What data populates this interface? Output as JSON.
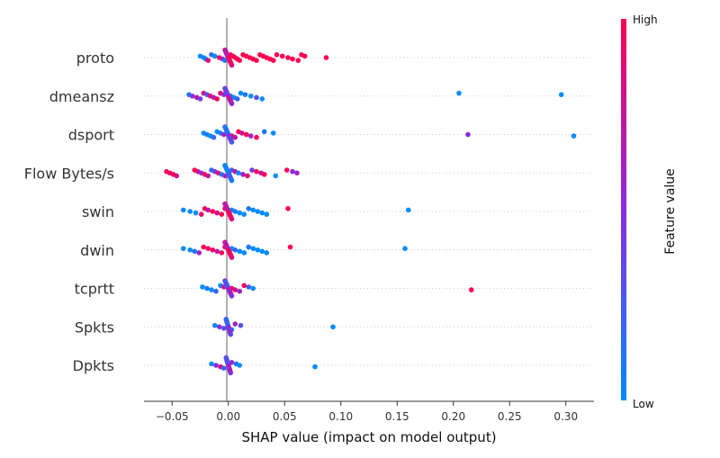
{
  "chart_data": {
    "type": "scatter",
    "subtype": "shap-beeswarm",
    "title": "",
    "xlabel": "SHAP value (impact on model output)",
    "xlim": [
      -0.075,
      0.325
    ],
    "xticks": [
      -0.05,
      0.0,
      0.05,
      0.1,
      0.15,
      0.2,
      0.25,
      0.3
    ],
    "xtick_labels": [
      "−0.05",
      "0.00",
      "0.05",
      "0.10",
      "0.15",
      "0.20",
      "0.25",
      "0.30"
    ],
    "features": [
      "proto",
      "dmeansz",
      "dsport",
      "Flow Bytes/s",
      "swin",
      "dwin",
      "tcprtt",
      "Spkts",
      "Dpkts"
    ],
    "colorbar": {
      "title": "Feature value",
      "high_label": "High",
      "low_label": "Low",
      "low_color": "#008bfb",
      "mid_color": "#8a2be2",
      "high_color": "#ff0052"
    },
    "grid": false,
    "points": [
      {
        "feature": "proto",
        "x": -0.025,
        "v": 0.0
      },
      {
        "feature": "proto",
        "x": -0.022,
        "v": 0.0
      },
      {
        "feature": "proto",
        "x": -0.02,
        "v": 0.1
      },
      {
        "feature": "proto",
        "x": -0.018,
        "v": 0.9
      },
      {
        "feature": "proto",
        "x": -0.015,
        "v": 0.2
      },
      {
        "feature": "proto",
        "x": -0.012,
        "v": 0.0
      },
      {
        "feature": "proto",
        "x": -0.008,
        "v": 1.0
      },
      {
        "feature": "proto",
        "x": -0.005,
        "v": 0.5
      },
      {
        "feature": "proto",
        "x": -0.003,
        "v": 0.1
      },
      {
        "feature": "proto",
        "x": 0.002,
        "v": 1.0
      },
      {
        "feature": "proto",
        "x": 0.004,
        "v": 1.0
      },
      {
        "feature": "proto",
        "x": 0.006,
        "v": 1.0
      },
      {
        "feature": "proto",
        "x": 0.008,
        "v": 1.0
      },
      {
        "feature": "proto",
        "x": 0.01,
        "v": 1.0
      },
      {
        "feature": "proto",
        "x": 0.013,
        "v": 1.0
      },
      {
        "feature": "proto",
        "x": 0.016,
        "v": 1.0
      },
      {
        "feature": "proto",
        "x": 0.019,
        "v": 1.0
      },
      {
        "feature": "proto",
        "x": 0.022,
        "v": 1.0
      },
      {
        "feature": "proto",
        "x": 0.025,
        "v": 1.0
      },
      {
        "feature": "proto",
        "x": 0.028,
        "v": 1.0
      },
      {
        "feature": "proto",
        "x": 0.031,
        "v": 1.0
      },
      {
        "feature": "proto",
        "x": 0.034,
        "v": 1.0
      },
      {
        "feature": "proto",
        "x": 0.037,
        "v": 1.0
      },
      {
        "feature": "proto",
        "x": 0.04,
        "v": 1.0
      },
      {
        "feature": "proto",
        "x": 0.043,
        "v": 1.0
      },
      {
        "feature": "proto",
        "x": 0.048,
        "v": 1.0
      },
      {
        "feature": "proto",
        "x": 0.053,
        "v": 1.0
      },
      {
        "feature": "proto",
        "x": 0.057,
        "v": 1.0
      },
      {
        "feature": "proto",
        "x": 0.062,
        "v": 1.0
      },
      {
        "feature": "proto",
        "x": 0.065,
        "v": 1.0
      },
      {
        "feature": "proto",
        "x": 0.068,
        "v": 1.0
      },
      {
        "feature": "proto",
        "x": 0.087,
        "v": 1.0
      },
      {
        "feature": "dmeansz",
        "x": -0.035,
        "v": 0.1
      },
      {
        "feature": "dmeansz",
        "x": -0.032,
        "v": 0.5
      },
      {
        "feature": "dmeansz",
        "x": -0.028,
        "v": 0.7
      },
      {
        "feature": "dmeansz",
        "x": -0.025,
        "v": 0.4
      },
      {
        "feature": "dmeansz",
        "x": -0.022,
        "v": 0.8
      },
      {
        "feature": "dmeansz",
        "x": -0.019,
        "v": 0.3
      },
      {
        "feature": "dmeansz",
        "x": -0.016,
        "v": 0.9
      },
      {
        "feature": "dmeansz",
        "x": -0.013,
        "v": 0.6
      },
      {
        "feature": "dmeansz",
        "x": -0.01,
        "v": 1.0
      },
      {
        "feature": "dmeansz",
        "x": -0.007,
        "v": 0.9
      },
      {
        "feature": "dmeansz",
        "x": -0.004,
        "v": 0.5
      },
      {
        "feature": "dmeansz",
        "x": 0.002,
        "v": 0.1
      },
      {
        "feature": "dmeansz",
        "x": 0.005,
        "v": 0.0
      },
      {
        "feature": "dmeansz",
        "x": 0.008,
        "v": 0.2
      },
      {
        "feature": "dmeansz",
        "x": 0.011,
        "v": 0.0
      },
      {
        "feature": "dmeansz",
        "x": 0.015,
        "v": 0.1
      },
      {
        "feature": "dmeansz",
        "x": 0.02,
        "v": 0.0
      },
      {
        "feature": "dmeansz",
        "x": 0.025,
        "v": 0.3
      },
      {
        "feature": "dmeansz",
        "x": 0.03,
        "v": 0.0
      },
      {
        "feature": "dmeansz",
        "x": 0.205,
        "v": 0.0
      },
      {
        "feature": "dmeansz",
        "x": 0.296,
        "v": 0.0
      },
      {
        "feature": "dsport",
        "x": -0.022,
        "v": 0.0
      },
      {
        "feature": "dsport",
        "x": -0.019,
        "v": 0.1
      },
      {
        "feature": "dsport",
        "x": -0.016,
        "v": 0.0
      },
      {
        "feature": "dsport",
        "x": -0.013,
        "v": 0.2
      },
      {
        "feature": "dsport",
        "x": -0.01,
        "v": 0.0
      },
      {
        "feature": "dsport",
        "x": -0.007,
        "v": 0.1
      },
      {
        "feature": "dsport",
        "x": -0.004,
        "v": 0.6
      },
      {
        "feature": "dsport",
        "x": 0.003,
        "v": 0.9
      },
      {
        "feature": "dsport",
        "x": 0.006,
        "v": 0.7
      },
      {
        "feature": "dsport",
        "x": 0.009,
        "v": 1.0
      },
      {
        "feature": "dsport",
        "x": 0.012,
        "v": 0.8
      },
      {
        "feature": "dsport",
        "x": 0.016,
        "v": 1.0
      },
      {
        "feature": "dsport",
        "x": 0.02,
        "v": 0.6
      },
      {
        "feature": "dsport",
        "x": 0.025,
        "v": 1.0
      },
      {
        "feature": "dsport",
        "x": 0.032,
        "v": 0.1
      },
      {
        "feature": "dsport",
        "x": 0.04,
        "v": 0.0
      },
      {
        "feature": "dsport",
        "x": 0.213,
        "v": 0.5
      },
      {
        "feature": "dsport",
        "x": 0.307,
        "v": 0.0
      },
      {
        "feature": "Flow Bytes/s",
        "x": -0.055,
        "v": 1.0
      },
      {
        "feature": "Flow Bytes/s",
        "x": -0.052,
        "v": 0.9
      },
      {
        "feature": "Flow Bytes/s",
        "x": -0.049,
        "v": 1.0
      },
      {
        "feature": "Flow Bytes/s",
        "x": -0.046,
        "v": 0.8
      },
      {
        "feature": "Flow Bytes/s",
        "x": -0.03,
        "v": 1.0
      },
      {
        "feature": "Flow Bytes/s",
        "x": -0.027,
        "v": 0.8
      },
      {
        "feature": "Flow Bytes/s",
        "x": -0.024,
        "v": 0.5
      },
      {
        "feature": "Flow Bytes/s",
        "x": -0.021,
        "v": 1.0
      },
      {
        "feature": "Flow Bytes/s",
        "x": -0.018,
        "v": 0.7
      },
      {
        "feature": "Flow Bytes/s",
        "x": -0.015,
        "v": 0.2
      },
      {
        "feature": "Flow Bytes/s",
        "x": -0.012,
        "v": 0.4
      },
      {
        "feature": "Flow Bytes/s",
        "x": -0.009,
        "v": 0.9
      },
      {
        "feature": "Flow Bytes/s",
        "x": -0.006,
        "v": 0.1
      },
      {
        "feature": "Flow Bytes/s",
        "x": -0.003,
        "v": 0.6
      },
      {
        "feature": "Flow Bytes/s",
        "x": 0.003,
        "v": 0.3
      },
      {
        "feature": "Flow Bytes/s",
        "x": 0.006,
        "v": 0.7
      },
      {
        "feature": "Flow Bytes/s",
        "x": 0.009,
        "v": 0.0
      },
      {
        "feature": "Flow Bytes/s",
        "x": 0.013,
        "v": 0.6
      },
      {
        "feature": "Flow Bytes/s",
        "x": 0.017,
        "v": 0.9
      },
      {
        "feature": "Flow Bytes/s",
        "x": 0.021,
        "v": 0.4
      },
      {
        "feature": "Flow Bytes/s",
        "x": 0.025,
        "v": 1.0
      },
      {
        "feature": "Flow Bytes/s",
        "x": 0.029,
        "v": 0.7
      },
      {
        "feature": "Flow Bytes/s",
        "x": 0.032,
        "v": 1.0
      },
      {
        "feature": "Flow Bytes/s",
        "x": 0.042,
        "v": 0.0
      },
      {
        "feature": "Flow Bytes/s",
        "x": 0.052,
        "v": 1.0
      },
      {
        "feature": "Flow Bytes/s",
        "x": 0.057,
        "v": 0.5
      },
      {
        "feature": "Flow Bytes/s",
        "x": 0.061,
        "v": 0.6
      },
      {
        "feature": "swin",
        "x": -0.04,
        "v": 0.0
      },
      {
        "feature": "swin",
        "x": -0.034,
        "v": 0.0
      },
      {
        "feature": "swin",
        "x": -0.029,
        "v": 0.0
      },
      {
        "feature": "swin",
        "x": -0.024,
        "v": 0.9
      },
      {
        "feature": "swin",
        "x": -0.021,
        "v": 1.0
      },
      {
        "feature": "swin",
        "x": -0.018,
        "v": 0.7
      },
      {
        "feature": "swin",
        "x": -0.014,
        "v": 1.0
      },
      {
        "feature": "swin",
        "x": -0.01,
        "v": 0.8
      },
      {
        "feature": "swin",
        "x": -0.006,
        "v": 1.0
      },
      {
        "feature": "swin",
        "x": -0.003,
        "v": 1.0
      },
      {
        "feature": "swin",
        "x": 0.003,
        "v": 0.0
      },
      {
        "feature": "swin",
        "x": 0.006,
        "v": 0.1
      },
      {
        "feature": "swin",
        "x": 0.01,
        "v": 0.0
      },
      {
        "feature": "swin",
        "x": 0.014,
        "v": 0.0
      },
      {
        "feature": "swin",
        "x": 0.018,
        "v": 0.1
      },
      {
        "feature": "swin",
        "x": 0.022,
        "v": 0.0
      },
      {
        "feature": "swin",
        "x": 0.026,
        "v": 0.0
      },
      {
        "feature": "swin",
        "x": 0.03,
        "v": 0.0
      },
      {
        "feature": "swin",
        "x": 0.034,
        "v": 0.0
      },
      {
        "feature": "swin",
        "x": 0.053,
        "v": 1.0
      },
      {
        "feature": "swin",
        "x": 0.16,
        "v": 0.0
      },
      {
        "feature": "dwin",
        "x": -0.04,
        "v": 0.0
      },
      {
        "feature": "dwin",
        "x": -0.034,
        "v": 0.0
      },
      {
        "feature": "dwin",
        "x": -0.03,
        "v": 0.1
      },
      {
        "feature": "dwin",
        "x": -0.026,
        "v": 0.6
      },
      {
        "feature": "dwin",
        "x": -0.022,
        "v": 1.0
      },
      {
        "feature": "dwin",
        "x": -0.018,
        "v": 0.9
      },
      {
        "feature": "dwin",
        "x": -0.014,
        "v": 1.0
      },
      {
        "feature": "dwin",
        "x": -0.01,
        "v": 0.7
      },
      {
        "feature": "dwin",
        "x": -0.006,
        "v": 1.0
      },
      {
        "feature": "dwin",
        "x": -0.003,
        "v": 1.0
      },
      {
        "feature": "dwin",
        "x": 0.003,
        "v": 0.0
      },
      {
        "feature": "dwin",
        "x": 0.006,
        "v": 0.2
      },
      {
        "feature": "dwin",
        "x": 0.01,
        "v": 0.0
      },
      {
        "feature": "dwin",
        "x": 0.014,
        "v": 0.0
      },
      {
        "feature": "dwin",
        "x": 0.018,
        "v": 0.1
      },
      {
        "feature": "dwin",
        "x": 0.022,
        "v": 0.0
      },
      {
        "feature": "dwin",
        "x": 0.026,
        "v": 0.0
      },
      {
        "feature": "dwin",
        "x": 0.03,
        "v": 0.0
      },
      {
        "feature": "dwin",
        "x": 0.034,
        "v": 0.0
      },
      {
        "feature": "dwin",
        "x": 0.055,
        "v": 1.0
      },
      {
        "feature": "dwin",
        "x": 0.157,
        "v": 0.0
      },
      {
        "feature": "tcprtt",
        "x": -0.023,
        "v": 0.0
      },
      {
        "feature": "tcprtt",
        "x": -0.019,
        "v": 0.1
      },
      {
        "feature": "tcprtt",
        "x": -0.015,
        "v": 0.0
      },
      {
        "feature": "tcprtt",
        "x": -0.011,
        "v": 0.2
      },
      {
        "feature": "tcprtt",
        "x": -0.007,
        "v": 0.0
      },
      {
        "feature": "tcprtt",
        "x": -0.004,
        "v": 0.8
      },
      {
        "feature": "tcprtt",
        "x": 0.003,
        "v": 1.0
      },
      {
        "feature": "tcprtt",
        "x": 0.006,
        "v": 0.8
      },
      {
        "feature": "tcprtt",
        "x": 0.01,
        "v": 0.6
      },
      {
        "feature": "tcprtt",
        "x": 0.014,
        "v": 1.0
      },
      {
        "feature": "tcprtt",
        "x": 0.018,
        "v": 0.2
      },
      {
        "feature": "tcprtt",
        "x": 0.022,
        "v": 0.0
      },
      {
        "feature": "tcprtt",
        "x": 0.216,
        "v": 1.0
      },
      {
        "feature": "Spkts",
        "x": -0.012,
        "v": 0.0
      },
      {
        "feature": "Spkts",
        "x": -0.008,
        "v": 0.5
      },
      {
        "feature": "Spkts",
        "x": -0.004,
        "v": 0.3
      },
      {
        "feature": "Spkts",
        "x": 0.003,
        "v": 0.1
      },
      {
        "feature": "Spkts",
        "x": 0.006,
        "v": 0.6
      },
      {
        "feature": "Spkts",
        "x": 0.011,
        "v": 0.3
      },
      {
        "feature": "Spkts",
        "x": 0.093,
        "v": 0.0
      },
      {
        "feature": "Dpkts",
        "x": -0.015,
        "v": 0.0
      },
      {
        "feature": "Dpkts",
        "x": -0.011,
        "v": 0.5
      },
      {
        "feature": "Dpkts",
        "x": -0.007,
        "v": 0.8
      },
      {
        "feature": "Dpkts",
        "x": -0.004,
        "v": 0.2
      },
      {
        "feature": "Dpkts",
        "x": 0.003,
        "v": 0.6
      },
      {
        "feature": "Dpkts",
        "x": 0.007,
        "v": 0.1
      },
      {
        "feature": "Dpkts",
        "x": 0.01,
        "v": 0.0
      },
      {
        "feature": "Dpkts",
        "x": 0.077,
        "v": 0.0
      }
    ]
  }
}
